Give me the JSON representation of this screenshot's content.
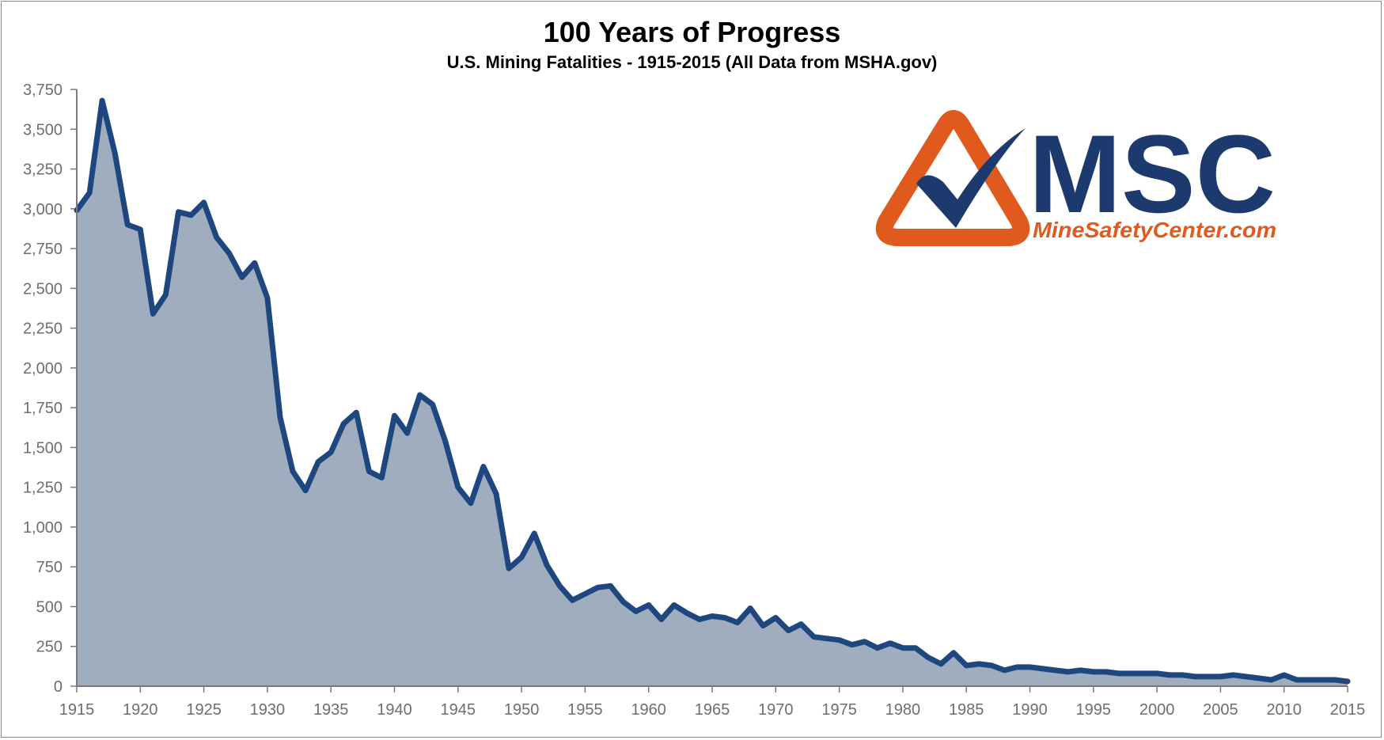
{
  "title": "100 Years of Progress",
  "subtitle": "U.S. Mining Fatalities - 1915-2015 (All Data from MSHA.gov)",
  "logo": {
    "wordmark": "MSC",
    "url_text": "MineSafetyCenter.com",
    "navy": "#1c3a6e",
    "orange": "#e05a1e"
  },
  "colors": {
    "line": "#1f477f",
    "fill": "#a0adbf",
    "axis": "#7a7a7a",
    "tick_text": "#6e6e6e"
  },
  "chart_data": {
    "type": "area",
    "title": "100 Years of Progress",
    "subtitle": "U.S. Mining Fatalities - 1915-2015 (All Data from MSHA.gov)",
    "xlabel": "",
    "ylabel": "",
    "xlim": [
      1915,
      2015
    ],
    "ylim": [
      0,
      3750
    ],
    "grid": false,
    "legend": "none",
    "x_ticks": [
      "1915",
      "1920",
      "1925",
      "1930",
      "1935",
      "1940",
      "1945",
      "1950",
      "1955",
      "1960",
      "1965",
      "1970",
      "1975",
      "1980",
      "1985",
      "1990",
      "1995",
      "2000",
      "2005",
      "2010",
      "2015"
    ],
    "y_ticks": [
      "0",
      "250",
      "500",
      "750",
      "1,000",
      "1,250",
      "1,500",
      "1,750",
      "2,000",
      "2,250",
      "2,500",
      "2,750",
      "3,000",
      "3,250",
      "3,500",
      "3,750"
    ],
    "y_tick_values": [
      0,
      250,
      500,
      750,
      1000,
      1250,
      1500,
      1750,
      2000,
      2250,
      2500,
      2750,
      3000,
      3250,
      3500,
      3750
    ],
    "series": [
      {
        "x": [
          1915,
          1916,
          1917,
          1918,
          1919,
          1920,
          1921,
          1922,
          1923,
          1924,
          1925,
          1926,
          1927,
          1928,
          1929,
          1930,
          1931,
          1932,
          1933,
          1934,
          1935,
          1936,
          1937,
          1938,
          1939,
          1940,
          1941,
          1942,
          1943,
          1944,
          1945,
          1946,
          1947,
          1948,
          1949,
          1950,
          1951,
          1952,
          1953,
          1954,
          1955,
          1956,
          1957,
          1958,
          1959,
          1960,
          1961,
          1962,
          1963,
          1964,
          1965,
          1966,
          1967,
          1968,
          1969,
          1970,
          1971,
          1972,
          1973,
          1974,
          1975,
          1976,
          1977,
          1978,
          1979,
          1980,
          1981,
          1982,
          1983,
          1984,
          1985,
          1986,
          1987,
          1988,
          1989,
          1990,
          1991,
          1992,
          1993,
          1994,
          1995,
          1996,
          1997,
          1998,
          1999,
          2000,
          2001,
          2002,
          2003,
          2004,
          2005,
          2006,
          2007,
          2008,
          2009,
          2010,
          2011,
          2012,
          2013,
          2014,
          2015
        ],
        "values": [
          2990,
          3100,
          3680,
          3350,
          2900,
          2870,
          2340,
          2460,
          2980,
          2960,
          3040,
          2820,
          2720,
          2570,
          2660,
          2440,
          1690,
          1350,
          1230,
          1410,
          1470,
          1650,
          1720,
          1350,
          1310,
          1700,
          1590,
          1830,
          1770,
          1540,
          1250,
          1150,
          1380,
          1210,
          740,
          810,
          960,
          760,
          630,
          540,
          580,
          620,
          630,
          530,
          470,
          510,
          420,
          510,
          460,
          420,
          440,
          430,
          400,
          490,
          380,
          430,
          350,
          390,
          310,
          300,
          290,
          260,
          280,
          240,
          270,
          240,
          240,
          180,
          140,
          210,
          130,
          140,
          130,
          100,
          120,
          120,
          110,
          100,
          90,
          100,
          90,
          90,
          80,
          80,
          80,
          80,
          70,
          70,
          60,
          60,
          60,
          70,
          60,
          50,
          40,
          70,
          40,
          40,
          40,
          40,
          30
        ]
      }
    ]
  }
}
